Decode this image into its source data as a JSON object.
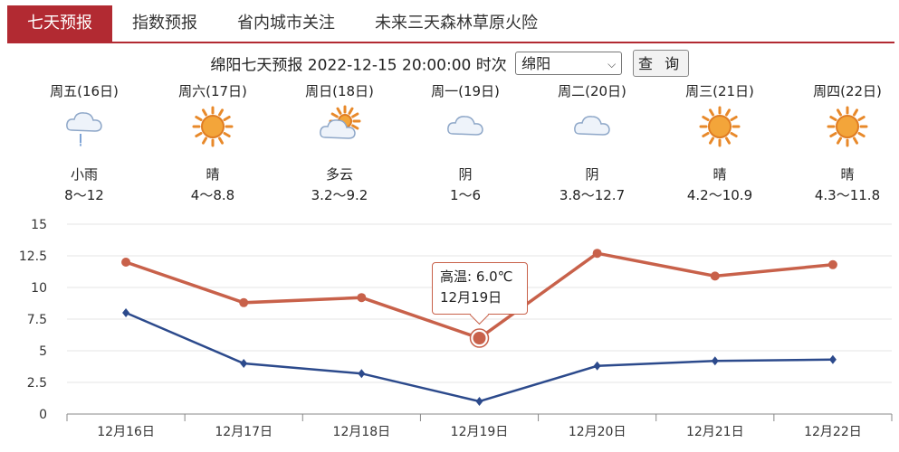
{
  "tabs": [
    {
      "label": "七天预报",
      "active": true
    },
    {
      "label": "指数预报",
      "active": false
    },
    {
      "label": "省内城市关注",
      "active": false
    },
    {
      "label": "未来三天森林草原火险",
      "active": false
    }
  ],
  "toolbar": {
    "title": "绵阳七天预报 2022-12-15 20:00:00 时次",
    "city_selected": "绵阳",
    "query_label": "查 询"
  },
  "days": [
    {
      "name": "周五(16日)",
      "icon": "light-rain-icon",
      "condition": "小雨",
      "range": "8～12"
    },
    {
      "name": "周六(17日)",
      "icon": "sun-icon",
      "condition": "晴",
      "range": "4～8.8"
    },
    {
      "name": "周日(18日)",
      "icon": "partly-cloudy-icon",
      "condition": "多云",
      "range": "3.2～9.2"
    },
    {
      "name": "周一(19日)",
      "icon": "cloud-icon",
      "condition": "阴",
      "range": "1～6"
    },
    {
      "name": "周二(20日)",
      "icon": "cloud-icon",
      "condition": "阴",
      "range": "3.8～12.7"
    },
    {
      "name": "周三(21日)",
      "icon": "sun-icon",
      "condition": "晴",
      "range": "4.2～10.9"
    },
    {
      "name": "周四(22日)",
      "icon": "sun-icon",
      "condition": "晴",
      "range": "4.3～11.8"
    }
  ],
  "tooltip": {
    "line1": "高温: 6.0℃",
    "line2": "12月19日"
  },
  "chart_data": {
    "type": "line",
    "categories": [
      "12月16日",
      "12月17日",
      "12月18日",
      "12月19日",
      "12月20日",
      "12月21日",
      "12月22日"
    ],
    "series": [
      {
        "key": "high",
        "values": [
          12,
          8.8,
          9.2,
          6,
          12.7,
          10.9,
          11.8
        ],
        "color": "#c8614a"
      },
      {
        "key": "low",
        "values": [
          8,
          4,
          3.2,
          1,
          3.8,
          4.2,
          4.3
        ],
        "color": "#2c4a8c"
      }
    ],
    "ylim": [
      0,
      15
    ],
    "yticks": [
      "0",
      "2.5",
      "5",
      "7.5",
      "10",
      "12.5",
      "15"
    ],
    "grid": true,
    "highlight_index": 3
  }
}
